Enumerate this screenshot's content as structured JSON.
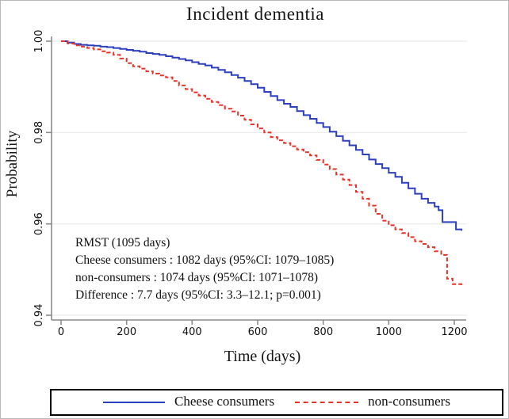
{
  "chart_data": {
    "type": "line",
    "title": "Incident dementia",
    "xlabel": "Time (days)",
    "ylabel": "Probability",
    "xlim": [
      0,
      1235
    ],
    "ylim": [
      0.94,
      1.001
    ],
    "grid": "horizontal",
    "legend_position": "bottom",
    "x_ticks": [
      0,
      200,
      400,
      600,
      800,
      1000,
      1200
    ],
    "y_ticks": [
      {
        "value": 1.0,
        "label": "1.00"
      },
      {
        "value": 0.98,
        "label": "0.98"
      },
      {
        "value": 0.96,
        "label": "0.96"
      },
      {
        "value": 0.94,
        "label": "0.94"
      }
    ],
    "annotations": [
      "RMST  (1095 days)",
      "Cheese consumers : 1082 days (95%CI: 1079–1085)",
      "non-consumers : 1074 days (95%CI: 1071–1078)",
      "Difference : 7.7 days (95%CI: 3.3–12.1; p=0.001)"
    ],
    "series": [
      {
        "name": "Cheese consumers",
        "color": "#2b3fbf",
        "style": "solid",
        "step": true,
        "points": [
          [
            0,
            1.0
          ],
          [
            20,
            0.9997
          ],
          [
            40,
            0.9994
          ],
          [
            60,
            0.9992
          ],
          [
            80,
            0.9991
          ],
          [
            100,
            0.999
          ],
          [
            120,
            0.9988
          ],
          [
            140,
            0.9987
          ],
          [
            160,
            0.9985
          ],
          [
            180,
            0.9983
          ],
          [
            200,
            0.9981
          ],
          [
            220,
            0.9979
          ],
          [
            240,
            0.9977
          ],
          [
            260,
            0.9974
          ],
          [
            280,
            0.9972
          ],
          [
            300,
            0.997
          ],
          [
            320,
            0.9967
          ],
          [
            340,
            0.9964
          ],
          [
            360,
            0.9961
          ],
          [
            380,
            0.9958
          ],
          [
            400,
            0.9954
          ],
          [
            420,
            0.995
          ],
          [
            440,
            0.9947
          ],
          [
            460,
            0.9942
          ],
          [
            480,
            0.9937
          ],
          [
            500,
            0.9932
          ],
          [
            520,
            0.9926
          ],
          [
            540,
            0.992
          ],
          [
            560,
            0.9913
          ],
          [
            580,
            0.9906
          ],
          [
            600,
            0.9898
          ],
          [
            620,
            0.9889
          ],
          [
            640,
            0.988
          ],
          [
            660,
            0.9871
          ],
          [
            680,
            0.9863
          ],
          [
            700,
            0.9856
          ],
          [
            720,
            0.9847
          ],
          [
            740,
            0.9838
          ],
          [
            760,
            0.983
          ],
          [
            780,
            0.9821
          ],
          [
            800,
            0.9812
          ],
          [
            820,
            0.9802
          ],
          [
            840,
            0.9792
          ],
          [
            860,
            0.9782
          ],
          [
            880,
            0.9772
          ],
          [
            900,
            0.9762
          ],
          [
            920,
            0.9752
          ],
          [
            940,
            0.9741
          ],
          [
            960,
            0.9731
          ],
          [
            980,
            0.9722
          ],
          [
            1000,
            0.9712
          ],
          [
            1020,
            0.9703
          ],
          [
            1040,
            0.969
          ],
          [
            1060,
            0.9678
          ],
          [
            1080,
            0.9666
          ],
          [
            1100,
            0.9655
          ],
          [
            1120,
            0.9646
          ],
          [
            1140,
            0.9638
          ],
          [
            1152,
            0.963
          ],
          [
            1164,
            0.9604
          ],
          [
            1205,
            0.9588
          ],
          [
            1222,
            0.9585
          ]
        ]
      },
      {
        "name": "non-consumers",
        "color": "#e8332a",
        "style": "dashed",
        "step": true,
        "points": [
          [
            0,
            1.0
          ],
          [
            20,
            0.9995
          ],
          [
            40,
            0.9991
          ],
          [
            60,
            0.9988
          ],
          [
            80,
            0.9985
          ],
          [
            100,
            0.9982
          ],
          [
            120,
            0.9978
          ],
          [
            140,
            0.9975
          ],
          [
            160,
            0.997
          ],
          [
            180,
            0.9962
          ],
          [
            200,
            0.9952
          ],
          [
            220,
            0.9945
          ],
          [
            240,
            0.994
          ],
          [
            260,
            0.9934
          ],
          [
            280,
            0.9929
          ],
          [
            300,
            0.9925
          ],
          [
            320,
            0.9921
          ],
          [
            340,
            0.9913
          ],
          [
            360,
            0.9903
          ],
          [
            380,
            0.9895
          ],
          [
            400,
            0.9888
          ],
          [
            420,
            0.9881
          ],
          [
            440,
            0.9874
          ],
          [
            460,
            0.9867
          ],
          [
            480,
            0.986
          ],
          [
            500,
            0.9852
          ],
          [
            520,
            0.9846
          ],
          [
            540,
            0.9837
          ],
          [
            560,
            0.9828
          ],
          [
            580,
            0.9818
          ],
          [
            600,
            0.9809
          ],
          [
            620,
            0.98
          ],
          [
            640,
            0.979
          ],
          [
            660,
            0.9783
          ],
          [
            680,
            0.9777
          ],
          [
            700,
            0.977
          ],
          [
            720,
            0.9763
          ],
          [
            740,
            0.9757
          ],
          [
            760,
            0.975
          ],
          [
            780,
            0.974
          ],
          [
            800,
            0.973
          ],
          [
            820,
            0.972
          ],
          [
            840,
            0.9708
          ],
          [
            860,
            0.9697
          ],
          [
            880,
            0.9685
          ],
          [
            900,
            0.967
          ],
          [
            920,
            0.9655
          ],
          [
            940,
            0.964
          ],
          [
            960,
            0.9622
          ],
          [
            980,
            0.9607
          ],
          [
            1000,
            0.9597
          ],
          [
            1020,
            0.9588
          ],
          [
            1040,
            0.958
          ],
          [
            1060,
            0.9571
          ],
          [
            1080,
            0.9562
          ],
          [
            1100,
            0.9556
          ],
          [
            1120,
            0.9549
          ],
          [
            1140,
            0.954
          ],
          [
            1160,
            0.9532
          ],
          [
            1178,
            0.948
          ],
          [
            1195,
            0.9468
          ],
          [
            1222,
            0.9465
          ]
        ]
      }
    ],
    "colors": {
      "grid": "#e9e9e9",
      "axis": "#8a8a8a",
      "tick_text": "#111111"
    }
  }
}
